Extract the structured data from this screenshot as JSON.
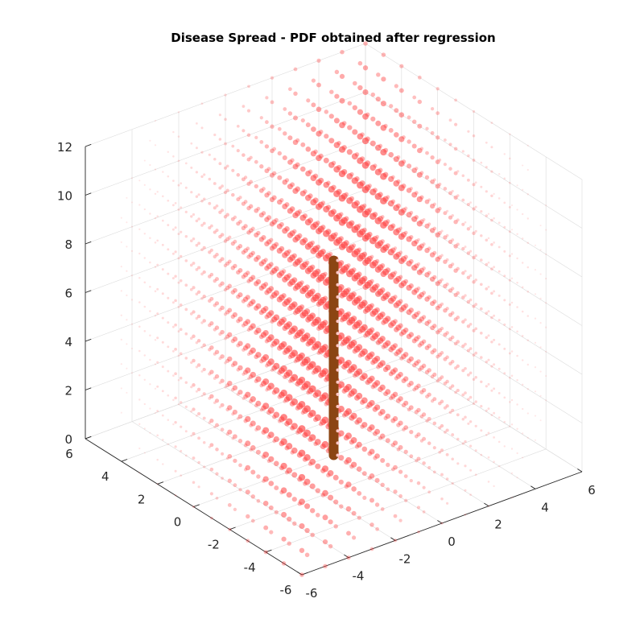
{
  "chart_data": {
    "type": "scatter3d",
    "title": "Disease Spread - PDF obtained after regression",
    "xlabel": "",
    "ylabel": "",
    "zlabel": "",
    "xlim": [
      -6,
      6
    ],
    "ylim": [
      -6,
      6
    ],
    "zlim": [
      0,
      12
    ],
    "x_ticks": [
      "-6",
      "-4",
      "-2",
      "0",
      "2",
      "4",
      "6"
    ],
    "y_ticks": [
      "-6",
      "-4",
      "-2",
      "0",
      "2",
      "4",
      "6"
    ],
    "z_ticks": [
      "0",
      "2",
      "4",
      "6",
      "8",
      "10",
      "12"
    ],
    "grid": true,
    "pdf_cloud": {
      "color": "#ff3b3b",
      "grid_x": {
        "start": -6,
        "end": 6,
        "step": 1
      },
      "grid_y": {
        "start": -6,
        "end": 6,
        "step": 1
      },
      "grid_z": {
        "start": 0,
        "end": 12,
        "step": 1
      },
      "peak_line": {
        "y_minus_x": 0,
        "z": 6
      }
    },
    "trajectory": {
      "color": "#8b4513",
      "marker_color": "#ffc8c8",
      "x": 0,
      "y": 0,
      "z": [
        0,
        0.5,
        1,
        1.5,
        2,
        2.5,
        3,
        3.5,
        4,
        4.5,
        5,
        5.5,
        6,
        6.5,
        7,
        7.5,
        8
      ]
    }
  }
}
